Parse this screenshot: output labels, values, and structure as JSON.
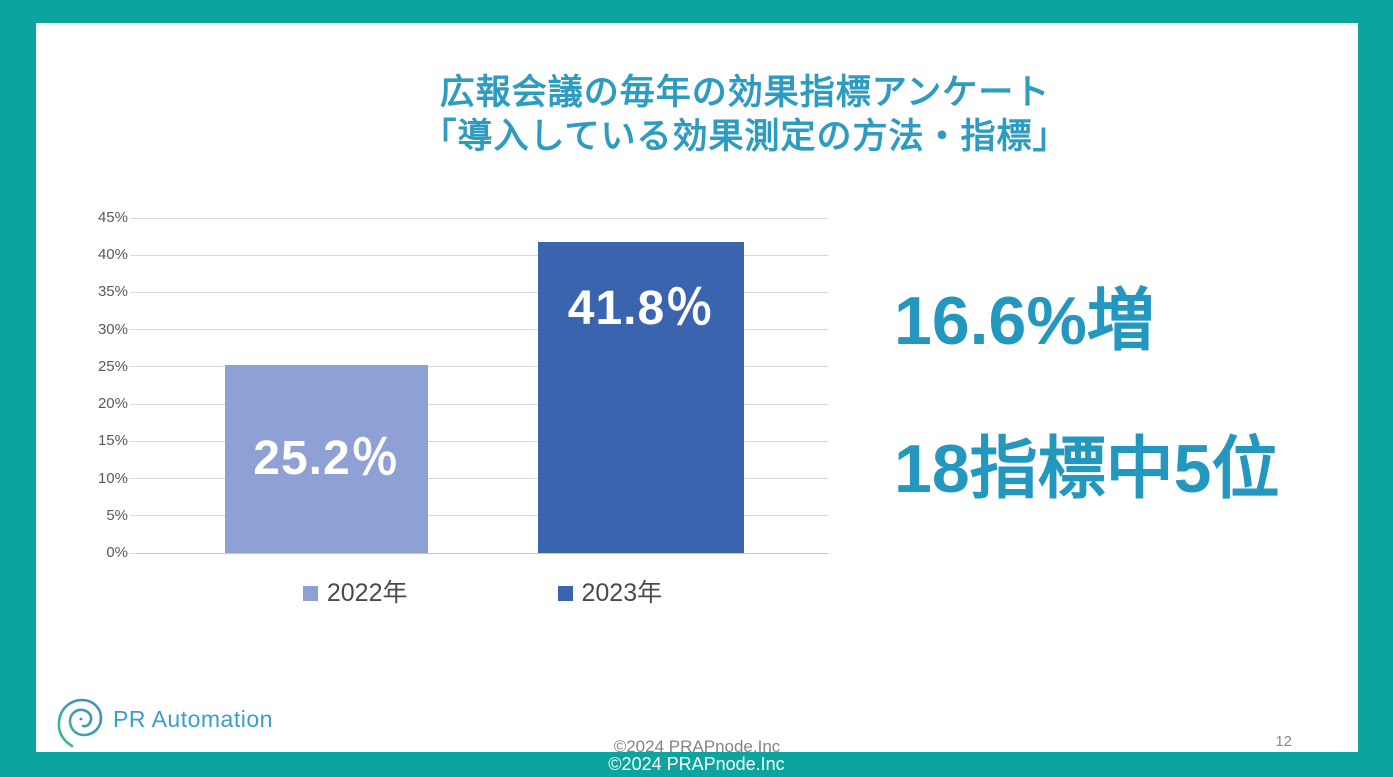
{
  "page": {
    "border_color": "#0BA49E",
    "slide_background": "#FFFFFF"
  },
  "title": {
    "line1": "広報会議の毎年の効果指標アンケート",
    "line2": "「導入している効果測定の方法・指標」",
    "color": "#2E9BC0"
  },
  "chart_data": {
    "type": "bar",
    "categories": [
      "2022年",
      "2023年"
    ],
    "values": [
      25.2,
      41.8
    ],
    "data_labels": [
      "25.2％",
      "41.8％"
    ],
    "data_label_positions": [
      "center",
      "inside-top"
    ],
    "bar_colors": [
      "#8EA0D4",
      "#3B64AE"
    ],
    "title": "",
    "xlabel": "",
    "ylabel": "",
    "ylim": [
      0,
      45
    ],
    "ytick_step": 5,
    "ytick_suffix": "%",
    "ytick_labels": [
      "0%",
      "5%",
      "10%",
      "15%",
      "20%",
      "25%",
      "30%",
      "35%",
      "40%",
      "45%"
    ],
    "gridlines": true,
    "gridline_color": "#D9D9D9",
    "axis_label_color": "#595959",
    "legend_position": "bottom"
  },
  "annotation": {
    "line1": "16.6%増",
    "line2": "18指標中5位",
    "color": "#2497BE"
  },
  "footer": {
    "logo_text": "PR Automation",
    "logo_icon": "spiral-swirl-icon",
    "copyright_slide": "©2024 PRAPnode.Inc",
    "copyright_strip": "©2024 PRAPnode.Inc",
    "page_number": "12"
  }
}
